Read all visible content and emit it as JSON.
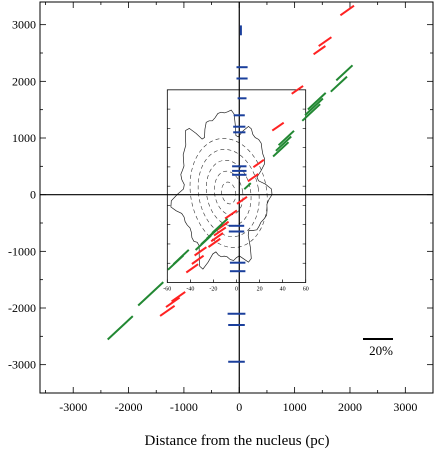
{
  "chart_data": {
    "type": "scatter",
    "title": "",
    "xlabel": "Distance from the nucleus (pc)",
    "ylabel": "",
    "xlim": [
      -3600,
      3500
    ],
    "ylim": [
      -3500,
      3400
    ],
    "x_ticks": [
      -3000,
      -2000,
      -1000,
      0,
      1000,
      2000,
      3000
    ],
    "y_ticks": [
      -3000,
      -2000,
      -1000,
      0,
      1000,
      2000,
      3000
    ],
    "grid": false,
    "scale_bar_label": "20%",
    "colors": {
      "red": "#ff2222",
      "green": "#228833",
      "blue": "#1a3f9c",
      "axes": "#000000"
    },
    "series": [
      {
        "color": "red",
        "vectors": [
          {
            "x": 1950,
            "y": 3250,
            "len": 300,
            "angle": 35
          },
          {
            "x": 1550,
            "y": 2700,
            "len": 280,
            "angle": 35
          },
          {
            "x": 1450,
            "y": 2550,
            "len": 260,
            "angle": 35
          },
          {
            "x": 1050,
            "y": 1850,
            "len": 250,
            "angle": 35
          },
          {
            "x": 700,
            "y": 1200,
            "len": 250,
            "angle": 35
          },
          {
            "x": 350,
            "y": 550,
            "len": 230,
            "angle": 35
          },
          {
            "x": 250,
            "y": 300,
            "len": 230,
            "angle": 35
          },
          {
            "x": 50,
            "y": -100,
            "len": 220,
            "angle": 35
          },
          {
            "x": -150,
            "y": -350,
            "len": 260,
            "angle": 35
          },
          {
            "x": -300,
            "y": -550,
            "len": 260,
            "angle": 35
          },
          {
            "x": -350,
            "y": -650,
            "len": 260,
            "angle": 35
          },
          {
            "x": -400,
            "y": -750,
            "len": 260,
            "angle": 35
          },
          {
            "x": -450,
            "y": -850,
            "len": 260,
            "angle": 35
          },
          {
            "x": -700,
            "y": -1000,
            "len": 260,
            "angle": 35
          },
          {
            "x": -750,
            "y": -1150,
            "len": 260,
            "angle": 35
          },
          {
            "x": -850,
            "y": -1300,
            "len": 260,
            "angle": 35
          },
          {
            "x": -1100,
            "y": -1800,
            "len": 300,
            "angle": 35
          },
          {
            "x": -1200,
            "y": -1900,
            "len": 300,
            "angle": 35
          },
          {
            "x": -1300,
            "y": -2050,
            "len": 320,
            "angle": 35
          }
        ]
      },
      {
        "color": "green",
        "vectors": [
          {
            "x": 1900,
            "y": 2150,
            "len": 400,
            "angle": 43
          },
          {
            "x": 1800,
            "y": 1950,
            "len": 400,
            "angle": 43
          },
          {
            "x": 1400,
            "y": 1650,
            "len": 440,
            "angle": 43
          },
          {
            "x": 1350,
            "y": 1550,
            "len": 440,
            "angle": 43
          },
          {
            "x": 1300,
            "y": 1450,
            "len": 440,
            "angle": 43
          },
          {
            "x": 850,
            "y": 1000,
            "len": 380,
            "angle": 43
          },
          {
            "x": 800,
            "y": 900,
            "len": 380,
            "angle": 43
          },
          {
            "x": 750,
            "y": 800,
            "len": 380,
            "angle": 43
          },
          {
            "x": 150,
            "y": 150,
            "len": 160,
            "angle": 43
          },
          {
            "x": -350,
            "y": -550,
            "len": 380,
            "angle": 43
          },
          {
            "x": -450,
            "y": -650,
            "len": 380,
            "angle": 43
          },
          {
            "x": -550,
            "y": -750,
            "len": 380,
            "angle": 43
          },
          {
            "x": -650,
            "y": -850,
            "len": 380,
            "angle": 43
          },
          {
            "x": -1050,
            "y": -1100,
            "len": 380,
            "angle": 43
          },
          {
            "x": -1150,
            "y": -1200,
            "len": 380,
            "angle": 43
          },
          {
            "x": -1600,
            "y": -1750,
            "len": 620,
            "angle": 43
          },
          {
            "x": -2150,
            "y": -2350,
            "len": 620,
            "angle": 43
          }
        ]
      },
      {
        "color": "blue",
        "vectors": [
          {
            "x": 30,
            "y": 2900,
            "len": 180,
            "angle": 90
          },
          {
            "x": 50,
            "y": 2250,
            "len": 200,
            "angle": 0
          },
          {
            "x": 50,
            "y": 2050,
            "len": 200,
            "angle": 0
          },
          {
            "x": 50,
            "y": 1700,
            "len": 160,
            "angle": 0
          },
          {
            "x": 0,
            "y": 1400,
            "len": 200,
            "angle": 0
          },
          {
            "x": 0,
            "y": 1200,
            "len": 220,
            "angle": 0
          },
          {
            "x": 0,
            "y": 1100,
            "len": 220,
            "angle": 0
          },
          {
            "x": 0,
            "y": 500,
            "len": 260,
            "angle": 0
          },
          {
            "x": 0,
            "y": 420,
            "len": 260,
            "angle": 0
          },
          {
            "x": 0,
            "y": 350,
            "len": 260,
            "angle": 0
          },
          {
            "x": -50,
            "y": -550,
            "len": 280,
            "angle": 0
          },
          {
            "x": -50,
            "y": -650,
            "len": 280,
            "angle": 0
          },
          {
            "x": -30,
            "y": -1200,
            "len": 280,
            "angle": 0
          },
          {
            "x": -30,
            "y": -1350,
            "len": 280,
            "angle": 0
          },
          {
            "x": -50,
            "y": -2100,
            "len": 320,
            "angle": 0
          },
          {
            "x": -50,
            "y": -2300,
            "len": 300,
            "angle": 0
          },
          {
            "x": -50,
            "y": -2950,
            "len": 300,
            "angle": 0
          }
        ]
      }
    ],
    "inset": {
      "xlim": [
        -60,
        60
      ],
      "x_ticks": [
        -60,
        -40,
        -20,
        0,
        20,
        40,
        60
      ],
      "x_tick_labels": [
        "-60",
        "-40",
        "-20",
        "0",
        "20",
        "40",
        "60"
      ],
      "extent": {
        "x": [
          -1300,
          1200
        ],
        "y": [
          -1550,
          1850
        ]
      }
    }
  }
}
